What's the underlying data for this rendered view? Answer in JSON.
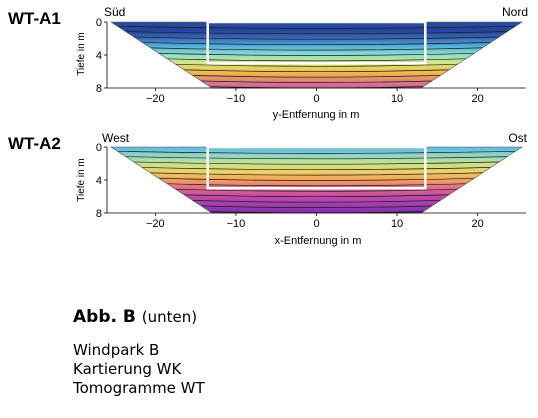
{
  "panels": [
    {
      "id": "WT-A1",
      "label": "WT-A1",
      "left_label": "Süd",
      "right_label": "Nord",
      "ylabel": "Tiefe in m",
      "xlabel": "y-Entfernung in m",
      "y_ticks": [
        "0",
        "4",
        "8"
      ],
      "x_ticks": [
        "−20",
        "−10",
        "0",
        "10",
        "20"
      ],
      "x_range": [
        -26,
        26
      ],
      "depth_range": [
        0,
        8
      ],
      "palette": [
        "#2a4fa2",
        "#24449a",
        "#3a6ab8",
        "#55b4dc",
        "#8ee0c9",
        "#d6e783",
        "#f0c04a",
        "#e28a6d",
        "#d25aa6"
      ],
      "box": {
        "x": [
          -13.5,
          13.5
        ],
        "depth": [
          0,
          5
        ]
      }
    },
    {
      "id": "WT-A2",
      "label": "WT-A2",
      "left_label": "West",
      "right_label": "Ost",
      "ylabel": "Tiefe in m",
      "xlabel": "x-Entfernung in m",
      "y_ticks": [
        "0",
        "4",
        "8"
      ],
      "x_ticks": [
        "−20",
        "−10",
        "0",
        "10",
        "20"
      ],
      "x_range": [
        -26,
        26
      ],
      "depth_range": [
        0,
        8
      ],
      "palette": [
        "#5bb6e6",
        "#8fd5c8",
        "#c7e38c",
        "#ecd064",
        "#f0a35c",
        "#e0698a",
        "#c44aa8",
        "#9f3cb0",
        "#7d2fa8"
      ],
      "box": {
        "x": [
          -13.5,
          13.5
        ],
        "depth": [
          0,
          5
        ]
      }
    }
  ],
  "caption": {
    "title": "Abb. B",
    "subtitle": "(unten)",
    "lines": [
      "Windpark B",
      "Kartierung WK",
      "Tomogramme WT"
    ]
  }
}
